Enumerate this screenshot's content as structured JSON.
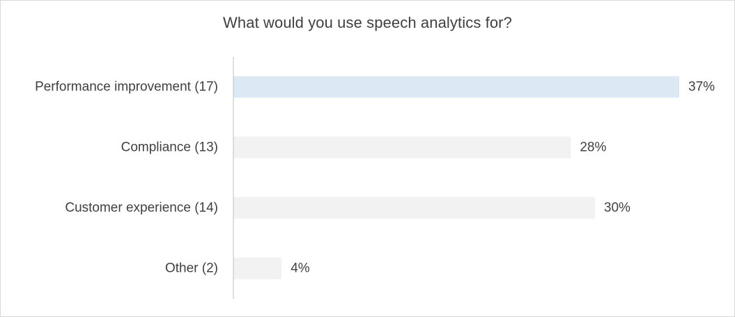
{
  "chart_data": {
    "type": "bar",
    "orientation": "horizontal",
    "title": "What would you use speech analytics for?",
    "categories": [
      "Performance improvement (17)",
      "Compliance (13)",
      "Customer experience (14)",
      "Other (2)"
    ],
    "values": [
      37,
      28,
      30,
      4
    ],
    "value_labels": [
      "37%",
      "28%",
      "30%",
      "4%"
    ],
    "unit": "%",
    "xlim": [
      0,
      37
    ],
    "grid": false,
    "legend": "none",
    "colors": {
      "highlight_bar": "#dde8f5",
      "bar": "#f2f2f2",
      "axis": "#bfbfbf",
      "text": "#404040"
    }
  }
}
